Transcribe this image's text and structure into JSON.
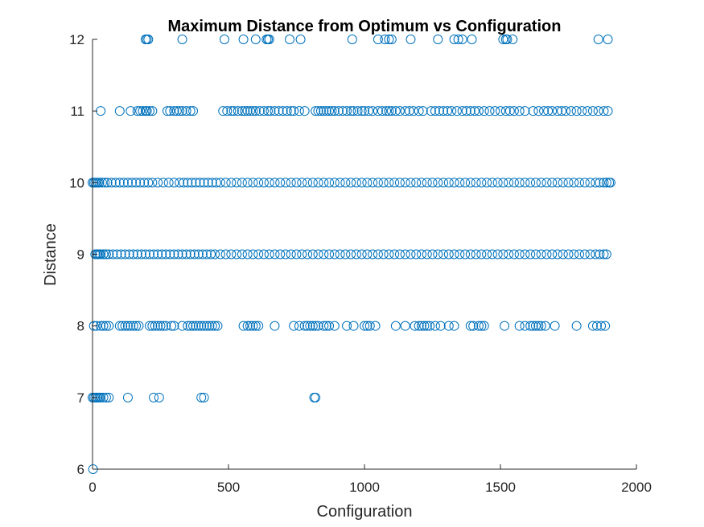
{
  "chart_data": {
    "type": "scatter",
    "title": "Maximum Distance from Optimum vs Configuration",
    "xlabel": "Configuration",
    "ylabel": "Distance",
    "xlim": [
      0,
      2000
    ],
    "ylim": [
      6,
      12
    ],
    "xticks": [
      "0",
      "500",
      "1000",
      "1500",
      "2000"
    ],
    "yticks": [
      "6",
      "7",
      "8",
      "9",
      "10",
      "11",
      "12"
    ],
    "grid": false,
    "legend": "none",
    "marker": "circle-open",
    "color": "#0072BD",
    "series": [
      {
        "points": [
          {
            "y": 12,
            "x": [
              195,
              200,
              205,
              330,
              485,
              555,
              600,
              640,
              645,
              650,
              725,
              765,
              955,
              1050,
              1075,
              1090,
              1100,
              1170,
              1270,
              1330,
              1345,
              1360,
              1395,
              1510,
              1520,
              1525,
              1545,
              1860,
              1895
            ]
          },
          {
            "y": 11,
            "x": [
              30,
              100,
              140,
              165,
              175,
              185,
              195,
              200,
              210,
              220,
              275,
              285,
              300,
              310,
              320,
              330,
              345,
              360,
              370,
              480,
              495,
              510,
              520,
              535,
              550,
              560,
              570,
              580,
              590,
              600,
              615,
              630,
              645,
              655,
              670,
              685,
              700,
              715,
              730,
              740,
              760,
              780,
              820,
              830,
              840,
              850,
              860,
              870,
              880,
              890,
              905,
              920,
              935,
              950,
              960,
              975,
              990,
              1000,
              1015,
              1030,
              1050,
              1065,
              1080,
              1090,
              1100,
              1115,
              1130,
              1150,
              1165,
              1180,
              1200,
              1215,
              1245,
              1260,
              1275,
              1290,
              1305,
              1320,
              1340,
              1360,
              1375,
              1390,
              1405,
              1420,
              1440,
              1460,
              1480,
              1500,
              1520,
              1535,
              1550,
              1570,
              1590,
              1620,
              1640,
              1660,
              1675,
              1690,
              1710,
              1725,
              1740,
              1760,
              1780,
              1800,
              1820,
              1840,
              1860,
              1880,
              1895
            ]
          },
          {
            "y": 10,
            "x": [
              0,
              5,
              10,
              15,
              20,
              25,
              35,
              45,
              55,
              70,
              85,
              100,
              115,
              130,
              145,
              160,
              175,
              190,
              205,
              220,
              240,
              260,
              280,
              300,
              320,
              335,
              350,
              365,
              380,
              395,
              410,
              425,
              440,
              455,
              470,
              490,
              510,
              530,
              550,
              570,
              590,
              610,
              630,
              650,
              670,
              690,
              710,
              730,
              750,
              770,
              790,
              810,
              830,
              850,
              870,
              890,
              910,
              930,
              950,
              970,
              990,
              1010,
              1030,
              1050,
              1070,
              1090,
              1110,
              1130,
              1150,
              1170,
              1190,
              1210,
              1230,
              1250,
              1270,
              1290,
              1310,
              1330,
              1350,
              1370,
              1390,
              1410,
              1430,
              1450,
              1470,
              1490,
              1510,
              1530,
              1550,
              1570,
              1590,
              1610,
              1630,
              1650,
              1670,
              1690,
              1710,
              1730,
              1750,
              1770,
              1790,
              1810,
              1830,
              1850,
              1865,
              1880,
              1890,
              1900,
              1905
            ]
          },
          {
            "y": 9,
            "x": [
              10,
              15,
              20,
              25,
              30,
              40,
              50,
              60,
              75,
              90,
              105,
              120,
              135,
              150,
              165,
              180,
              195,
              210,
              225,
              240,
              255,
              270,
              285,
              300,
              315,
              330,
              345,
              360,
              375,
              390,
              405,
              420,
              435,
              450,
              470,
              490,
              510,
              530,
              550,
              570,
              590,
              610,
              630,
              650,
              670,
              690,
              710,
              730,
              750,
              770,
              790,
              810,
              830,
              850,
              870,
              890,
              910,
              930,
              950,
              970,
              990,
              1010,
              1030,
              1050,
              1070,
              1090,
              1110,
              1130,
              1150,
              1170,
              1190,
              1210,
              1230,
              1250,
              1270,
              1290,
              1310,
              1330,
              1350,
              1370,
              1390,
              1410,
              1430,
              1450,
              1470,
              1490,
              1510,
              1530,
              1550,
              1570,
              1590,
              1610,
              1630,
              1650,
              1670,
              1690,
              1710,
              1730,
              1750,
              1770,
              1790,
              1810,
              1830,
              1850,
              1865,
              1880,
              1890
            ]
          },
          {
            "y": 8,
            "x": [
              5,
              15,
              30,
              40,
              50,
              60,
              100,
              110,
              120,
              130,
              140,
              150,
              160,
              170,
              210,
              220,
              230,
              240,
              250,
              260,
              270,
              290,
              300,
              330,
              350,
              360,
              370,
              380,
              390,
              400,
              410,
              420,
              430,
              440,
              450,
              460,
              555,
              570,
              580,
              590,
              600,
              610,
              670,
              740,
              760,
              780,
              790,
              800,
              810,
              820,
              830,
              850,
              860,
              870,
              890,
              935,
              960,
              1000,
              1010,
              1020,
              1040,
              1115,
              1150,
              1185,
              1200,
              1210,
              1220,
              1230,
              1240,
              1260,
              1280,
              1310,
              1330,
              1390,
              1400,
              1420,
              1430,
              1440,
              1515,
              1570,
              1590,
              1610,
              1620,
              1630,
              1640,
              1650,
              1665,
              1700,
              1780,
              1840,
              1855,
              1870,
              1885
            ]
          },
          {
            "y": 7,
            "x": [
              0,
              5,
              10,
              15,
              20,
              25,
              30,
              40,
              50,
              60,
              130,
              225,
              245,
              400,
              410,
              815,
              820
            ]
          },
          {
            "y": 6,
            "x": [
              2
            ]
          }
        ]
      }
    ]
  }
}
